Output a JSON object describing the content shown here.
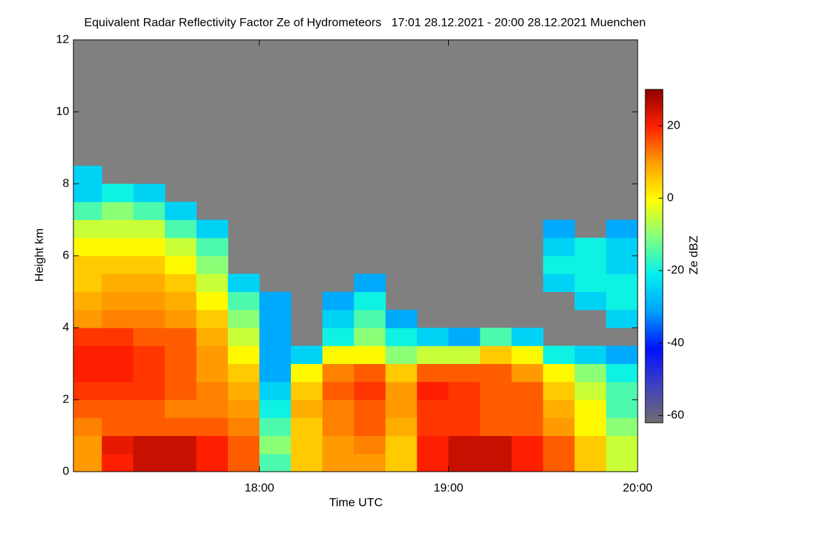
{
  "chart_data": {
    "type": "heatmap",
    "title": "Equivalent Radar Reflectivity Factor Ze of Hydrometeors   17:01 28.12.2021 - 20:00 28.12.2021 Muenchen",
    "x_label": "Time UTC",
    "y_label": "Height km",
    "colorbar_label": "Ze dBZ",
    "x": [
      1021,
      1030,
      1040,
      1050,
      1060,
      1070,
      1080,
      1090,
      1100,
      1110,
      1120,
      1130,
      1140,
      1150,
      1160,
      1170,
      1180,
      1190,
      1200
    ],
    "y": [
      0,
      0.5,
      1,
      1.5,
      2,
      2.5,
      3,
      3.5,
      4,
      4.5,
      5,
      5.5,
      6,
      6.5,
      7,
      7.5,
      8,
      8.5
    ],
    "z": [
      [
        10,
        20,
        25,
        25,
        20,
        15,
        -15,
        5,
        10,
        10,
        5,
        20,
        25,
        25,
        20,
        15,
        5,
        -5
      ],
      [
        10,
        22,
        25,
        25,
        20,
        15,
        -10,
        5,
        10,
        12,
        5,
        20,
        25,
        25,
        20,
        15,
        5,
        -5
      ],
      [
        12,
        15,
        15,
        15,
        15,
        12,
        -15,
        5,
        12,
        15,
        8,
        18,
        18,
        15,
        15,
        10,
        0,
        -10
      ],
      [
        15,
        15,
        15,
        12,
        12,
        10,
        -20,
        8,
        12,
        15,
        10,
        18,
        18,
        15,
        15,
        8,
        0,
        -15
      ],
      [
        18,
        18,
        18,
        15,
        12,
        8,
        -25,
        5,
        15,
        18,
        10,
        20,
        18,
        15,
        15,
        5,
        -5,
        -15
      ],
      [
        20,
        20,
        18,
        15,
        10,
        5,
        -30,
        0,
        12,
        15,
        5,
        15,
        15,
        15,
        10,
        0,
        -10,
        -20
      ],
      [
        20,
        20,
        18,
        15,
        10,
        0,
        -30,
        -25,
        0,
        0,
        -10,
        -5,
        -5,
        5,
        0,
        -20,
        -25,
        -30
      ],
      [
        18,
        18,
        15,
        15,
        8,
        -5,
        -30,
        null,
        -20,
        -10,
        -20,
        -25,
        -30,
        -15,
        -25,
        null,
        null,
        null
      ],
      [
        10,
        12,
        12,
        10,
        5,
        -10,
        -30,
        null,
        -25,
        -15,
        -30,
        null,
        null,
        null,
        null,
        null,
        null,
        -25
      ],
      [
        8,
        10,
        10,
        8,
        0,
        -15,
        -30,
        null,
        -30,
        -20,
        null,
        null,
        null,
        null,
        null,
        null,
        -25,
        -20
      ],
      [
        5,
        8,
        8,
        5,
        -5,
        -25,
        null,
        null,
        null,
        -30,
        null,
        null,
        null,
        null,
        null,
        -25,
        -20,
        -20
      ],
      [
        5,
        5,
        5,
        0,
        -10,
        null,
        null,
        null,
        null,
        null,
        null,
        null,
        null,
        null,
        null,
        -20,
        -20,
        -25
      ],
      [
        0,
        0,
        0,
        -5,
        -15,
        null,
        null,
        null,
        null,
        null,
        null,
        null,
        null,
        null,
        null,
        -25,
        -20,
        -25
      ],
      [
        -5,
        -5,
        -5,
        -15,
        -25,
        null,
        null,
        null,
        null,
        null,
        null,
        null,
        null,
        null,
        null,
        -30,
        null,
        -30
      ],
      [
        -15,
        -10,
        -15,
        -25,
        null,
        null,
        null,
        null,
        null,
        null,
        null,
        null,
        null,
        null,
        null,
        null,
        null,
        null
      ],
      [
        -25,
        -20,
        -25,
        null,
        null,
        null,
        null,
        null,
        null,
        null,
        null,
        null,
        null,
        null,
        null,
        null,
        null,
        null
      ],
      [
        -25,
        null,
        null,
        null,
        null,
        null,
        null,
        null,
        null,
        null,
        null,
        null,
        null,
        null,
        null,
        null,
        null,
        null
      ]
    ],
    "xlim": [
      1021,
      1200
    ],
    "xticks": [
      {
        "value": 1080,
        "label": "18:00"
      },
      {
        "value": 1140,
        "label": "19:00"
      },
      {
        "value": 1200,
        "label": "20:00"
      }
    ],
    "ylim": [
      0,
      12
    ],
    "yticks": [
      0,
      2,
      4,
      6,
      8,
      10,
      12
    ],
    "zlim": [
      -62,
      30
    ],
    "zticks": [
      -60,
      -40,
      -20,
      0,
      20
    ],
    "colormap": [
      "#6e6e6e",
      "#4040c0",
      "#0010ff",
      "#00a0ff",
      "#00f0f0",
      "#80ff80",
      "#ffff00",
      "#ffa000",
      "#ff2000",
      "#900000"
    ],
    "background": "#808080"
  }
}
